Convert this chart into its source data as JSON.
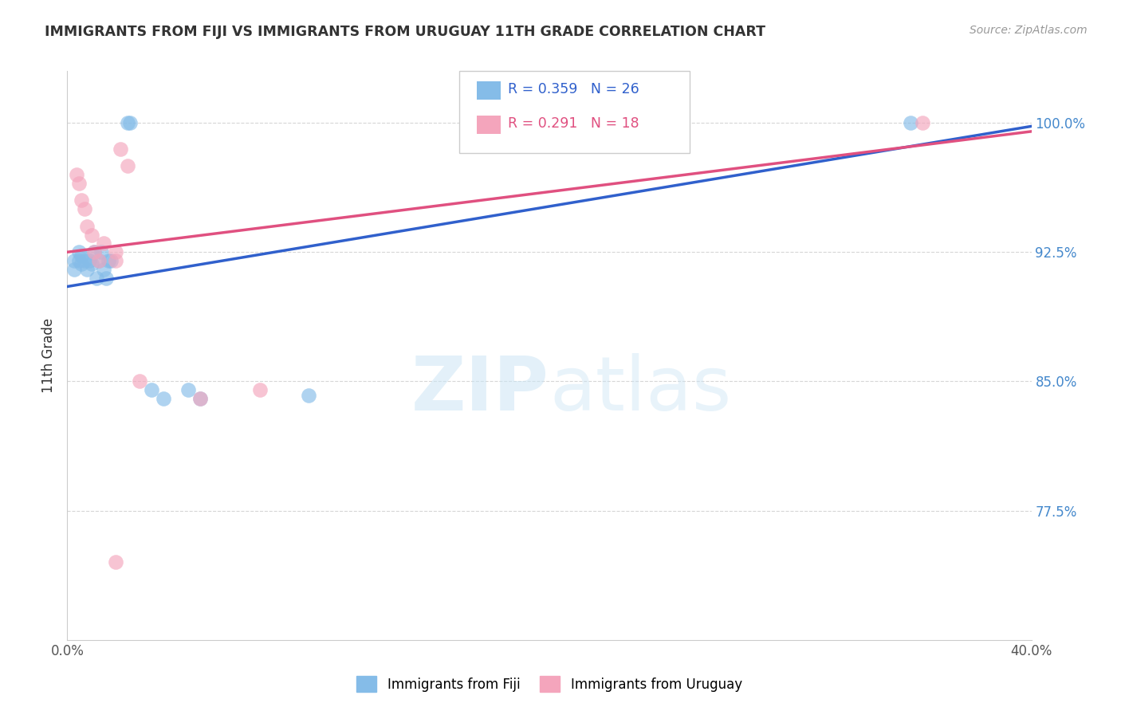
{
  "title": "IMMIGRANTS FROM FIJI VS IMMIGRANTS FROM URUGUAY 11TH GRADE CORRELATION CHART",
  "source": "Source: ZipAtlas.com",
  "ylabel": "11th Grade",
  "xlim": [
    0.0,
    40.0
  ],
  "ylim": [
    70.0,
    103.0
  ],
  "yticks": [
    77.5,
    85.0,
    92.5,
    100.0
  ],
  "ytick_labels": [
    "77.5%",
    "85.0%",
    "92.5%",
    "100.0%"
  ],
  "xticks": [
    0.0,
    5.0,
    10.0,
    15.0,
    20.0,
    25.0,
    30.0,
    35.0,
    40.0
  ],
  "fiji_color": "#85bce8",
  "uruguay_color": "#f4a5bc",
  "fiji_line_color": "#3060cc",
  "uruguay_line_color": "#e05080",
  "fiji_R": 0.359,
  "fiji_N": 26,
  "uruguay_R": 0.291,
  "uruguay_N": 18,
  "fiji_label": "Immigrants from Fiji",
  "uruguay_label": "Immigrants from Uruguay",
  "watermark": "ZIPatlas",
  "grid_color": "#cccccc",
  "title_color": "#333333",
  "yaxis_color": "#4488cc",
  "source_color": "#999999",
  "fiji_scatter_x": [
    0.3,
    0.3,
    0.5,
    0.5,
    0.6,
    0.6,
    0.7,
    0.8,
    0.9,
    1.0,
    1.1,
    1.2,
    1.3,
    1.4,
    1.5,
    1.6,
    1.7,
    1.8,
    2.5,
    2.6,
    3.5,
    4.0,
    5.0,
    5.5,
    10.0,
    35.0
  ],
  "fiji_scatter_y": [
    91.5,
    92.0,
    92.5,
    92.0,
    92.3,
    91.8,
    92.0,
    91.5,
    92.0,
    91.8,
    92.5,
    91.0,
    92.0,
    92.5,
    91.5,
    91.0,
    92.0,
    92.0,
    100.0,
    100.0,
    84.5,
    84.0,
    84.5,
    84.0,
    84.2,
    100.0
  ],
  "uruguay_scatter_x": [
    0.4,
    0.5,
    0.6,
    0.7,
    0.8,
    1.0,
    1.1,
    1.3,
    1.5,
    2.0,
    2.2,
    2.5,
    3.0,
    5.5,
    8.0,
    2.0,
    2.0,
    35.5
  ],
  "uruguay_scatter_y": [
    97.0,
    96.5,
    95.5,
    95.0,
    94.0,
    93.5,
    92.5,
    92.0,
    93.0,
    92.5,
    98.5,
    97.5,
    85.0,
    84.0,
    84.5,
    92.0,
    74.5,
    100.0
  ],
  "fiji_line_x0": 0.0,
  "fiji_line_y0": 90.5,
  "fiji_line_x1": 40.0,
  "fiji_line_y1": 99.8,
  "uruguay_line_x0": 0.0,
  "uruguay_line_y0": 92.5,
  "uruguay_line_x1": 40.0,
  "uruguay_line_y1": 99.5
}
